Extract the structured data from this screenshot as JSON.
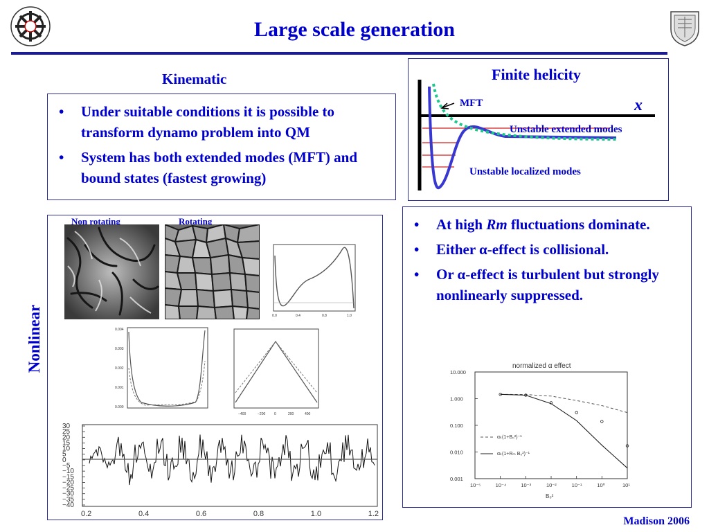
{
  "title": "Large scale generation",
  "kinematic": {
    "heading": "Kinematic",
    "bullets": [
      "Under suitable conditions it is possible to transform dynamo problem into QM",
      "System has both extended modes (MFT) and bound states (fastest growing)"
    ]
  },
  "helicity": {
    "heading": "Finite helicity",
    "mft_label": "MFT",
    "x_label": "x",
    "extended_label": "Unstable extended modes",
    "localized_label": "Unstable localized modes"
  },
  "nonlinear": {
    "vertical_label": "Nonlinear",
    "non_rotating": "Non rotating",
    "rotating": "Rotating",
    "wave_chart": {
      "yticks": [
        "30",
        "25",
        "20",
        "15",
        "10",
        "5",
        "0",
        "−5",
        "−10",
        "−15",
        "−20",
        "−25",
        "−30",
        "−35",
        "−40"
      ],
      "xticks": [
        "0.2",
        "0.4",
        "0.6",
        "0.8",
        "1.0",
        "1.2"
      ]
    }
  },
  "rm_panel": {
    "bullet_1_prefix": "At high ",
    "bullet_1_italic": "Rm",
    "bullet_1_suffix": " fluctuations dominate.",
    "bullet_2_prefix": "Either ",
    "bullet_2_suffix": "-effect is collisional.",
    "bullet_3_prefix": "Or ",
    "bullet_3_suffix": "-effect is turbulent but strongly nonlinearly suppressed.",
    "alpha": "α"
  },
  "alpha_chart": {
    "type": "line",
    "title": "normalized α effect",
    "xlabel": "B₀²",
    "yticks": [
      "10.000",
      "1.000",
      "0.100",
      "0.010",
      "0.001"
    ],
    "xticks": [
      "10⁻⁵",
      "10⁻⁴",
      "10⁻³",
      "10⁻²",
      "10⁻¹",
      "10⁰",
      "10¹"
    ],
    "legend": [
      "αₖ(1+B₀²)⁻¹",
      "αₖ(1+Rₘ B₀²)⁻¹"
    ],
    "x_log": [
      -4,
      -3,
      -2,
      -1,
      0,
      1
    ],
    "dashed": [
      1.45,
      1.42,
      1.25,
      0.85,
      0.55,
      0.3
    ],
    "solid": [
      1.45,
      1.35,
      0.65,
      0.15,
      0.018,
      0.0025
    ],
    "points": [
      1.45,
      1.35,
      0.7,
      0.3,
      0.14,
      0.017
    ]
  },
  "footer": "Madison 2006"
}
